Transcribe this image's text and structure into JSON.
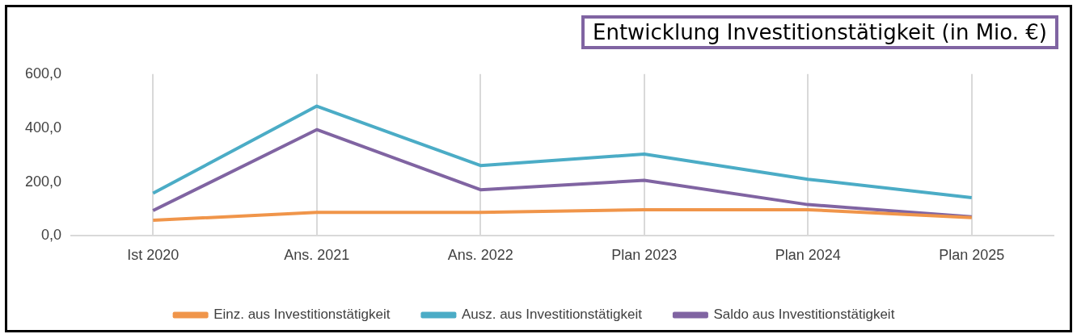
{
  "chart_data": {
    "type": "line",
    "title": "Entwicklung  Investitionstätigkeit (in Mio. €)",
    "categories": [
      "Ist 2020",
      "Ans. 2021",
      "Ans. 2022",
      "Plan 2023",
      "Plan 2024",
      "Plan 2025"
    ],
    "series": [
      {
        "name": "Einz. aus Investitionstätigkeit",
        "color": "#f0954a",
        "values": [
          58,
          87,
          87,
          97,
          97,
          68
        ]
      },
      {
        "name": "Ausz. aus Investitionstätigkeit",
        "color": "#4bacc6",
        "values": [
          158,
          481,
          261,
          303,
          210,
          142
        ]
      },
      {
        "name": "Saldo aus Investitionstätigkeit",
        "color": "#8064a2",
        "values": [
          94,
          394,
          171,
          206,
          116,
          71
        ]
      }
    ],
    "ylim": [
      0,
      600
    ],
    "yticks": [
      {
        "value": 0,
        "label": "0,0"
      },
      {
        "value": 200,
        "label": "200,0"
      },
      {
        "value": 400,
        "label": "400,0"
      },
      {
        "value": 600,
        "label": "600,0"
      }
    ],
    "grid": "x",
    "legend": "bottom",
    "marker": "none",
    "line_style": "solid"
  }
}
